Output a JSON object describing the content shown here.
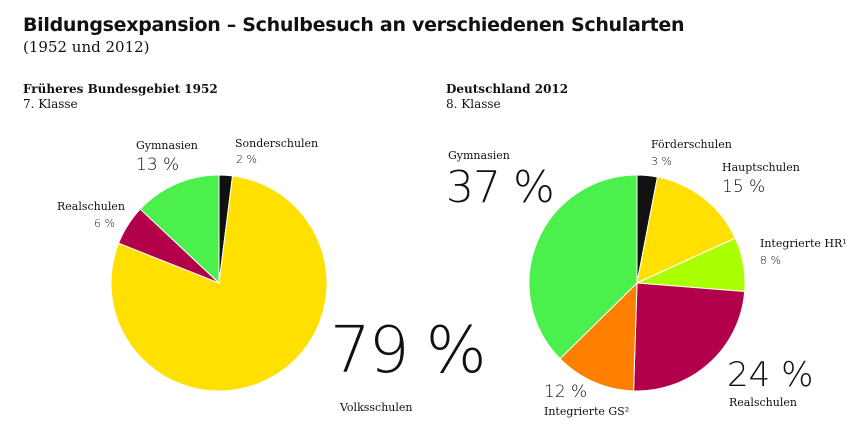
{
  "header": {
    "title": "Bildungsexpansion – Schulbesuch an verschiedenen Schularten",
    "subtitle": "(1952 und 2012)"
  },
  "chart_data": [
    {
      "type": "pie",
      "title": "Früheres Bundesgebiet 1952",
      "subtitle": "7. Klasse",
      "slices": [
        {
          "label": "Sonderschulen",
          "display": "2 %",
          "value": 2,
          "color": "#111111"
        },
        {
          "label": "Volksschulen",
          "display": "79 %",
          "value": 79,
          "color": "#ffe000"
        },
        {
          "label": "Realschulen",
          "display": "6 %",
          "value": 6,
          "color": "#b3004a"
        },
        {
          "label": "Gymnasien",
          "display": "13 %",
          "value": 13,
          "color": "#4cf04c"
        }
      ]
    },
    {
      "type": "pie",
      "title": "Deutschland 2012",
      "subtitle": "8. Klasse",
      "slices": [
        {
          "label": "Förderschulen",
          "display": "3 %",
          "value": 3,
          "color": "#111111"
        },
        {
          "label": "Hauptschulen",
          "display": "15 %",
          "value": 15,
          "color": "#ffe000"
        },
        {
          "label": "Integrierte HR¹",
          "display": "8 %",
          "value": 8,
          "color": "#aaff00"
        },
        {
          "label": "Realschulen",
          "display": "24 %",
          "value": 24,
          "color": "#b3004a"
        },
        {
          "label": "Integrierte GS²",
          "display": "12 %",
          "value": 12,
          "color": "#ff8000"
        },
        {
          "label": "Gymnasien",
          "display": "37 %",
          "value": 37,
          "color": "#4cf04c"
        }
      ]
    }
  ]
}
